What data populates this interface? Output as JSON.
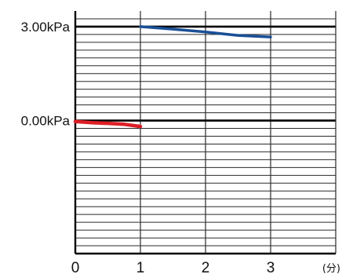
{
  "chart_data": {
    "type": "line",
    "x_ticks": [
      "0",
      "1",
      "2",
      "3"
    ],
    "x_unit": "(分)",
    "xlim": [
      0,
      4
    ],
    "ylim": [
      -4.25,
      3.5
    ],
    "y_labeled_ticks": [
      {
        "value": 3.0,
        "label": "3.00kPa"
      },
      {
        "value": 0.0,
        "label": "0.00kPa"
      }
    ],
    "y_minor_step": 0.25,
    "grid": true,
    "series": [
      {
        "color": "#1a4f96",
        "x": [
          1.0,
          1.5,
          2.0,
          2.5,
          3.0
        ],
        "y": [
          3.0,
          2.92,
          2.83,
          2.72,
          2.67
        ]
      },
      {
        "color": "#dd1f26",
        "x": [
          0.0,
          0.25,
          0.5,
          0.75,
          1.0
        ],
        "y": [
          -0.03,
          -0.07,
          -0.09,
          -0.12,
          -0.19
        ]
      }
    ]
  }
}
